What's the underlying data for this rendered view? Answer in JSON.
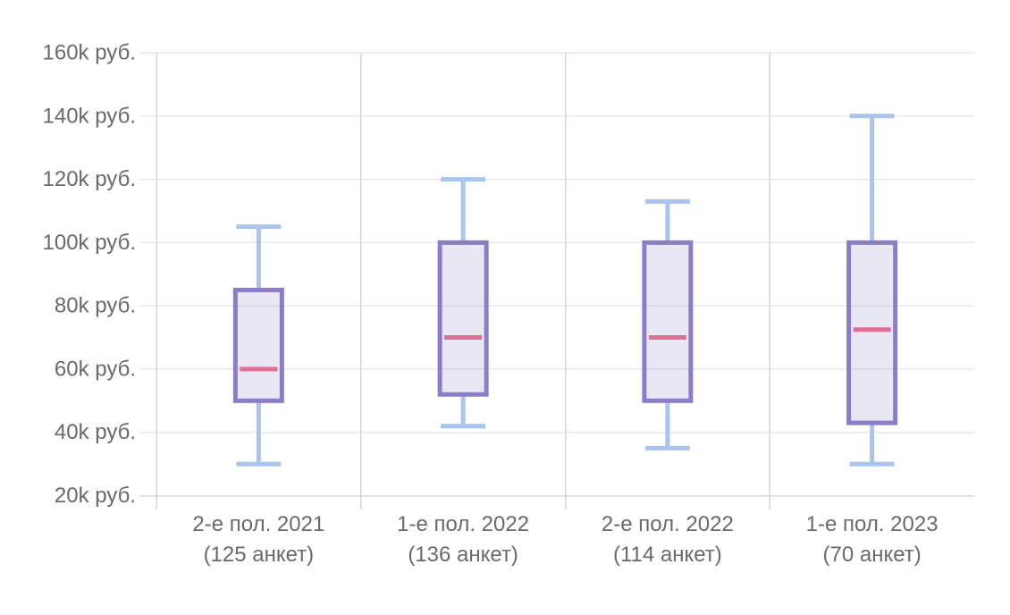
{
  "chart_data": {
    "type": "boxplot",
    "title": "",
    "xlabel": "",
    "ylabel": "",
    "grid": true,
    "legend": "none",
    "ylim": [
      15,
      160
    ],
    "y_axis": {
      "tick_values": [
        160,
        140,
        120,
        100,
        80,
        60,
        40,
        20
      ],
      "tick_labels": [
        "160k руб.",
        "140k руб.",
        "120k руб.",
        "100k руб.",
        "80k руб.",
        "60k руб.",
        "40k руб.",
        "20k руб."
      ]
    },
    "categories": [
      {
        "label": "2-е пол. 2021",
        "sublabel": "(125 анкет)"
      },
      {
        "label": "1-е пол. 2022",
        "sublabel": "(136 анкет)"
      },
      {
        "label": "2-е пол. 2022",
        "sublabel": "(114 анкет)"
      },
      {
        "label": "1-е пол. 2023",
        "sublabel": "(70 анкет)"
      }
    ],
    "series": [
      {
        "name": "2-е пол. 2021",
        "low": 30,
        "q1": 50,
        "median": 60,
        "q3": 85,
        "high": 105
      },
      {
        "name": "1-е пол. 2022",
        "low": 42,
        "q1": 52,
        "median": 70,
        "q3": 100,
        "high": 120
      },
      {
        "name": "2-е пол. 2022",
        "low": 35,
        "q1": 50,
        "median": 70,
        "q3": 100,
        "high": 113
      },
      {
        "name": "1-е пол. 2023",
        "low": 30,
        "q1": 43,
        "median": 72.5,
        "q3": 100,
        "high": 140
      }
    ],
    "colors": {
      "box_border": "#8d7cc8",
      "box_fill_rgba": "rgba(141,124,200,0.18)",
      "median": "#e06e92",
      "whisker": "#a9c4ee",
      "gridline": "#e9e9e9",
      "axis_line": "#d6d6d6",
      "text": "#6a6a6a"
    }
  }
}
